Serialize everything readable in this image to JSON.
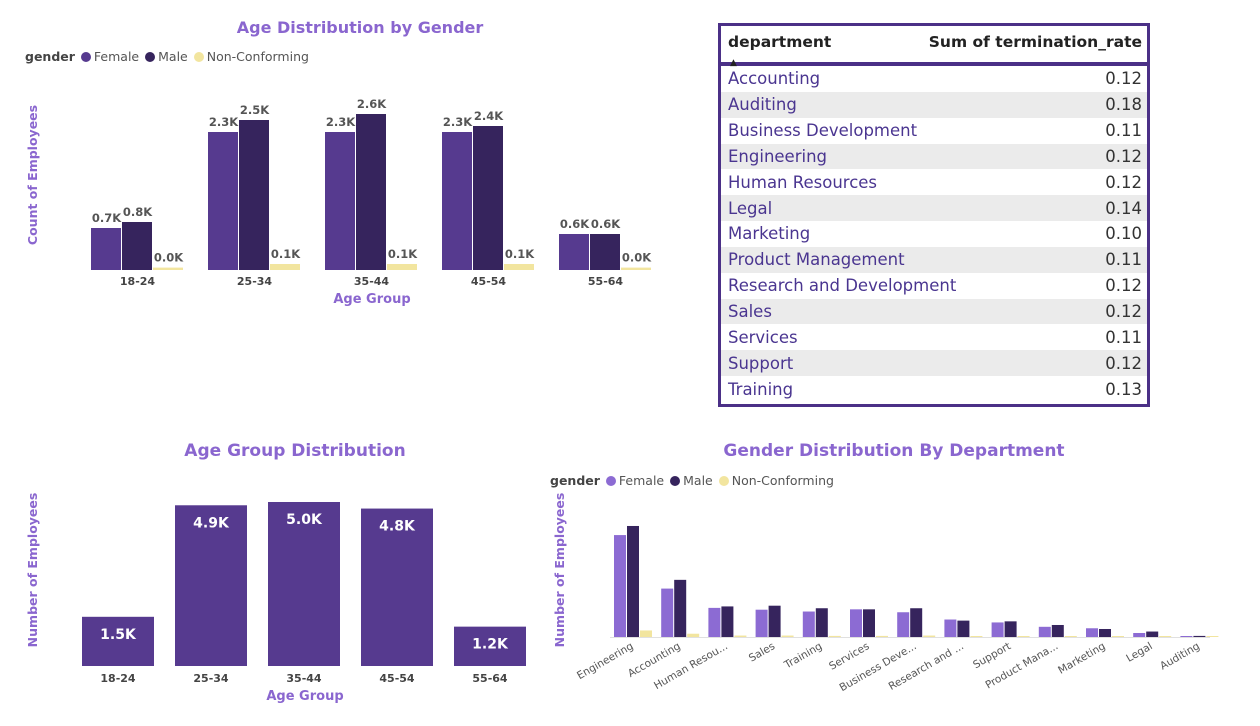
{
  "colors": {
    "female": "#563a8f",
    "male": "#36245d",
    "nonconforming": "#f2e59f",
    "female_light": "#8c6bd3",
    "title": "#8a66cf",
    "bar_single": "#563a8f"
  },
  "chart_data": [
    {
      "type": "bar",
      "title": "Age Distribution by Gender",
      "xlabel": "Age Group",
      "ylabel": "Count of Employees",
      "legend_title": "gender",
      "legend_position": "top-left",
      "categories": [
        "18-24",
        "25-34",
        "35-44",
        "45-54",
        "55-64"
      ],
      "series": [
        {
          "name": "Female",
          "values": [
            0.7,
            2.3,
            2.3,
            2.3,
            0.6
          ],
          "labels": [
            "0.7K",
            "2.3K",
            "2.3K",
            "2.3K",
            "0.6K"
          ]
        },
        {
          "name": "Male",
          "values": [
            0.8,
            2.5,
            2.6,
            2.4,
            0.6
          ],
          "labels": [
            "0.8K",
            "2.5K",
            "2.6K",
            "2.4K",
            "0.6K"
          ]
        },
        {
          "name": "Non-Conforming",
          "values": [
            0.04,
            0.1,
            0.1,
            0.1,
            0.04
          ],
          "labels": [
            "0.0K",
            "0.1K",
            "0.1K",
            "0.1K",
            "0.0K"
          ]
        }
      ],
      "unit": "K"
    },
    {
      "type": "table",
      "columns": [
        "department",
        "Sum of termination_rate"
      ],
      "sort": "department ascending",
      "rows": [
        [
          "Accounting",
          "0.12"
        ],
        [
          "Auditing",
          "0.18"
        ],
        [
          "Business Development",
          "0.11"
        ],
        [
          "Engineering",
          "0.12"
        ],
        [
          "Human Resources",
          "0.12"
        ],
        [
          "Legal",
          "0.14"
        ],
        [
          "Marketing",
          "0.10"
        ],
        [
          "Product Management",
          "0.11"
        ],
        [
          "Research and Development",
          "0.12"
        ],
        [
          "Sales",
          "0.12"
        ],
        [
          "Services",
          "0.11"
        ],
        [
          "Support",
          "0.12"
        ],
        [
          "Training",
          "0.13"
        ]
      ]
    },
    {
      "type": "bar",
      "title": "Age Group Distribution",
      "xlabel": "Age Group",
      "ylabel": "Number of Employees",
      "categories": [
        "18-24",
        "25-34",
        "35-44",
        "45-54",
        "55-64"
      ],
      "values": [
        1.5,
        4.9,
        5.0,
        4.8,
        1.2
      ],
      "labels": [
        "1.5K",
        "4.9K",
        "5.0K",
        "4.8K",
        "1.2K"
      ],
      "unit": "K"
    },
    {
      "type": "bar",
      "title": "Gender Distribution By Department",
      "xlabel": "",
      "ylabel": "Number of Employees",
      "legend_title": "gender",
      "legend_position": "top-left",
      "categories": [
        "Engineering",
        "Accounting",
        "Human Resou...",
        "Sales",
        "Training",
        "Services",
        "Business Deve...",
        "Research and ...",
        "Support",
        "Product Mana...",
        "Marketing",
        "Legal",
        "Auditing"
      ],
      "series": [
        {
          "name": "Female",
          "values": [
            2.8,
            1.33,
            0.8,
            0.75,
            0.7,
            0.76,
            0.68,
            0.48,
            0.4,
            0.28,
            0.24,
            0.11,
            0.02
          ]
        },
        {
          "name": "Male",
          "values": [
            3.05,
            1.57,
            0.84,
            0.86,
            0.79,
            0.76,
            0.79,
            0.45,
            0.43,
            0.33,
            0.22,
            0.15,
            0.03
          ]
        },
        {
          "name": "Non-Conforming",
          "values": [
            0.18,
            0.09,
            0.04,
            0.04,
            0.03,
            0.03,
            0.04,
            0.02,
            0.02,
            0.01,
            0.01,
            0.01,
            0.0
          ]
        }
      ],
      "unit": "K"
    }
  ]
}
